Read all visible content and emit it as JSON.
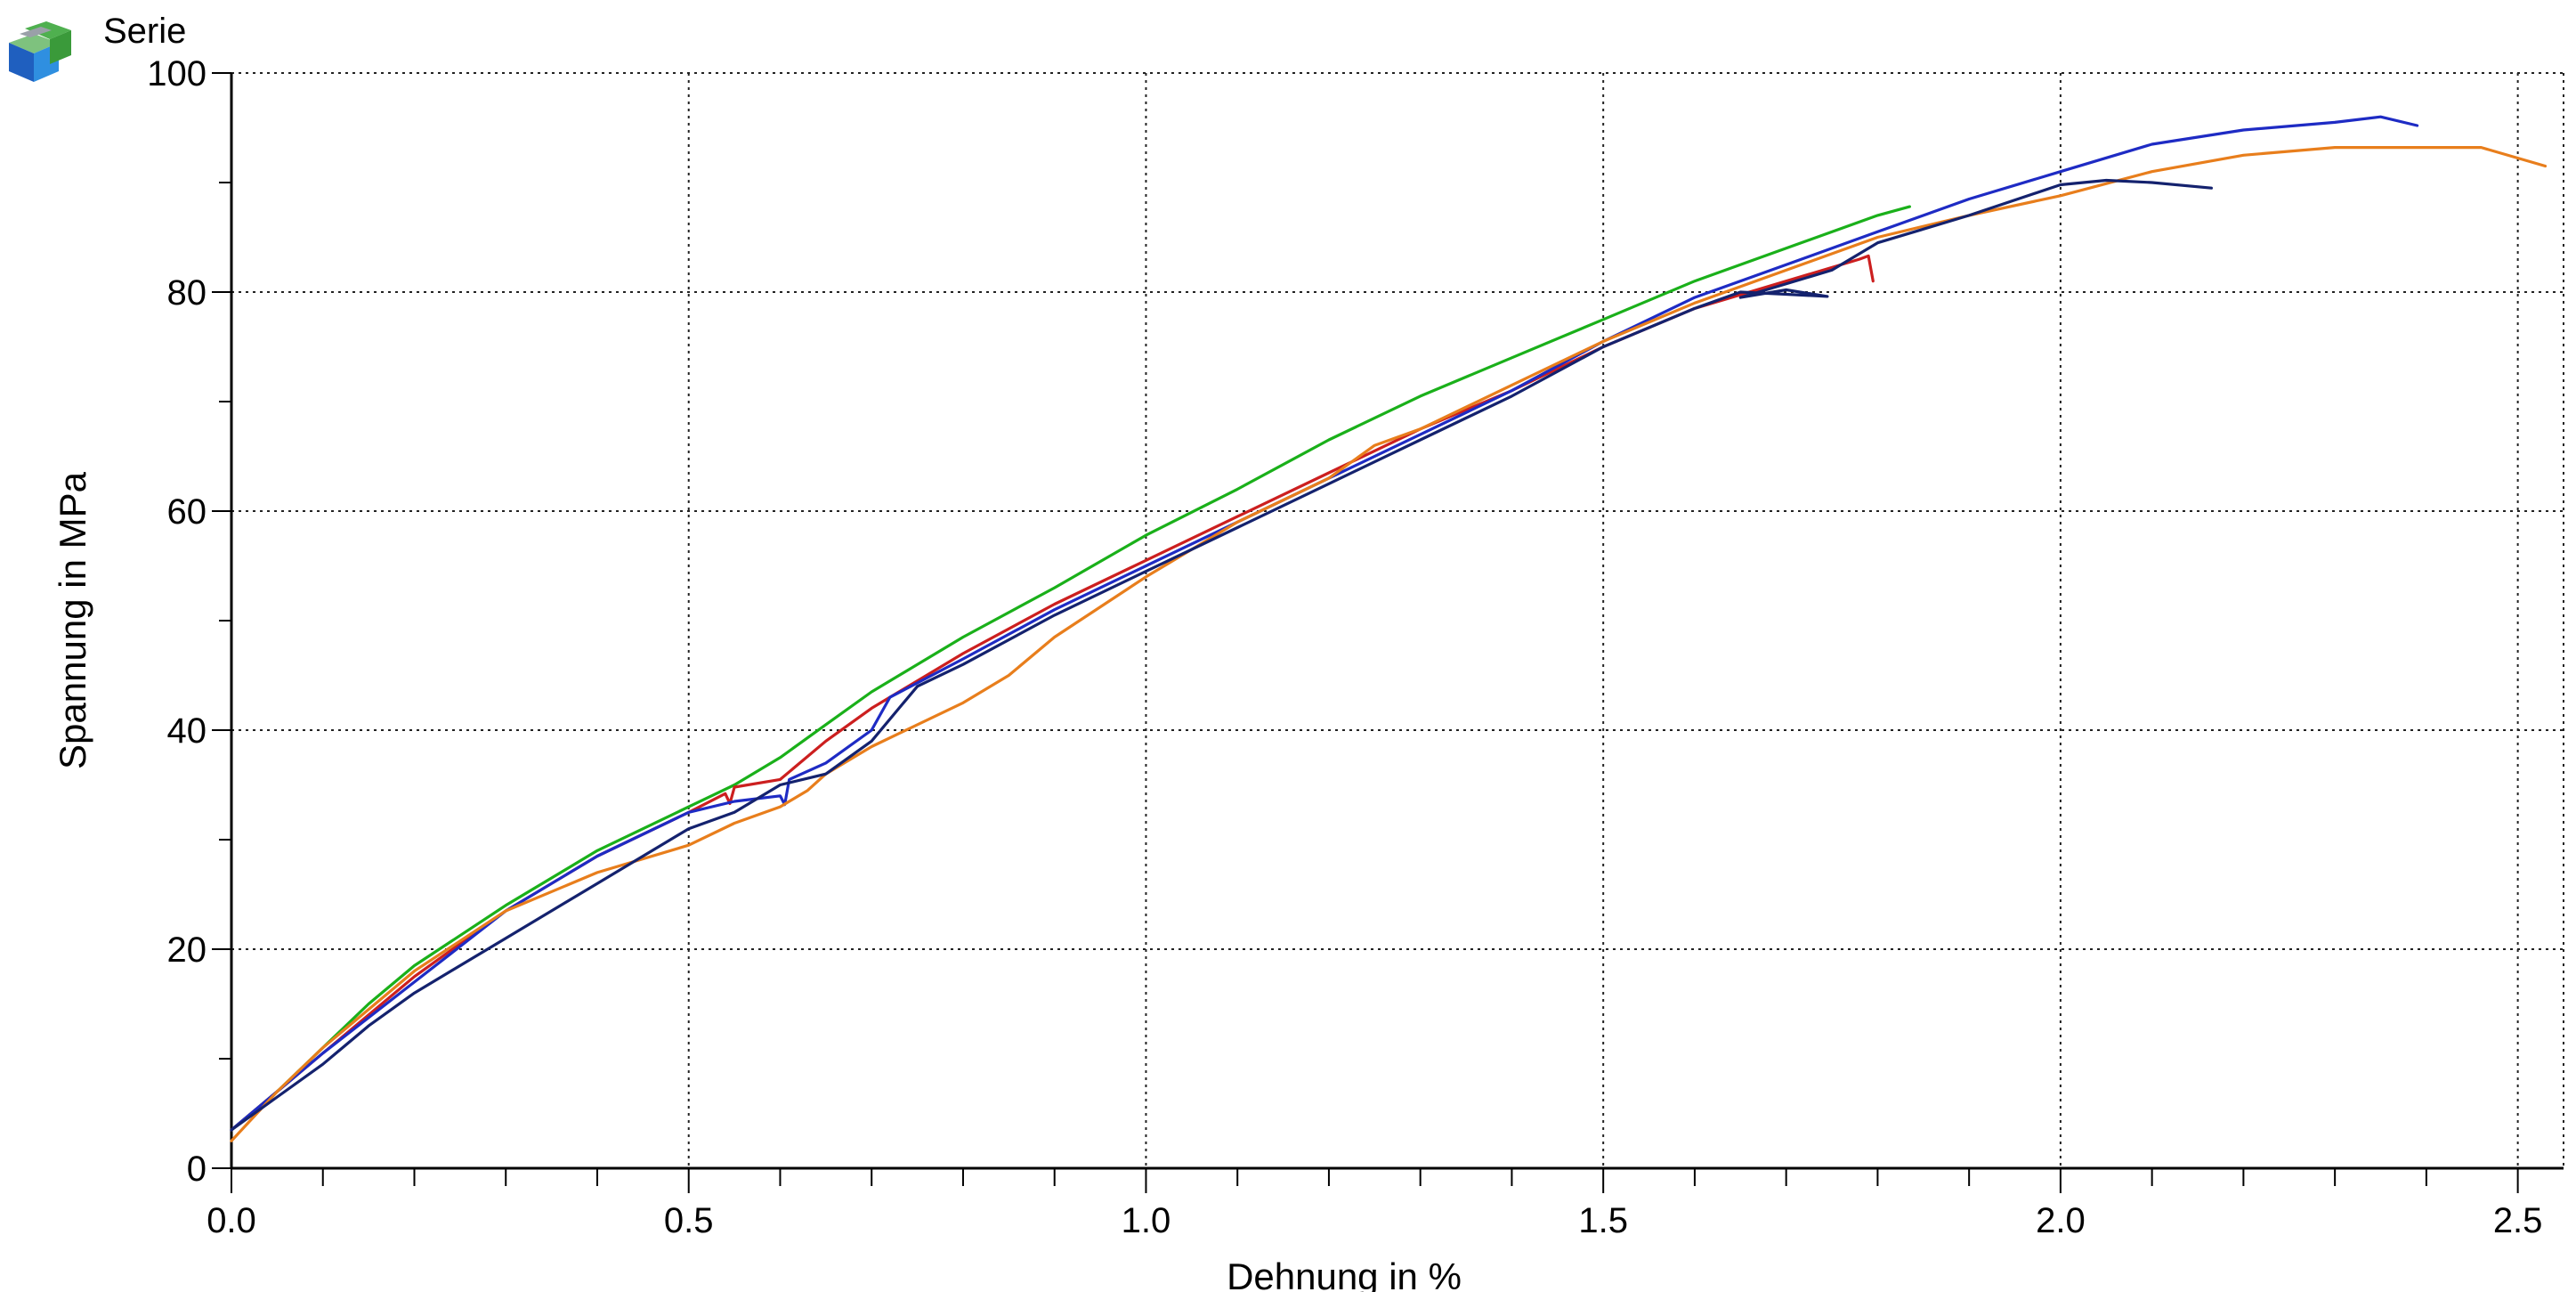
{
  "chart_data": {
    "type": "line",
    "title": "",
    "xlabel": "Dehnung in %",
    "ylabel": "Spannung in MPa",
    "xlim": [
      0,
      2.55
    ],
    "ylim": [
      0,
      100
    ],
    "x_ticks": [
      "0.0",
      "0.5",
      "1.0",
      "1.5",
      "2.0",
      "2.5"
    ],
    "x_tick_values": [
      0,
      0.5,
      1.0,
      1.5,
      2.0,
      2.5
    ],
    "y_ticks": [
      "0",
      "20",
      "40",
      "60",
      "80",
      "100"
    ],
    "y_tick_values": [
      0,
      20,
      40,
      60,
      80,
      100
    ],
    "grid": true,
    "grid_style": "dotted",
    "legend": {
      "label": "Serie",
      "position": "top-left"
    },
    "series": [
      {
        "color": "#1ab01a",
        "points": [
          [
            0,
            3.5
          ],
          [
            0.05,
            7
          ],
          [
            0.1,
            11
          ],
          [
            0.15,
            15
          ],
          [
            0.2,
            18.5
          ],
          [
            0.3,
            24
          ],
          [
            0.4,
            29
          ],
          [
            0.5,
            33
          ],
          [
            0.55,
            35
          ],
          [
            0.6,
            37.5
          ],
          [
            0.65,
            40.5
          ],
          [
            0.7,
            43.5
          ],
          [
            0.75,
            46
          ],
          [
            0.8,
            48.5
          ],
          [
            0.9,
            53
          ],
          [
            1.0,
            57.8
          ],
          [
            1.1,
            62
          ],
          [
            1.2,
            66.5
          ],
          [
            1.3,
            70.5
          ],
          [
            1.4,
            74
          ],
          [
            1.5,
            77.5
          ],
          [
            1.6,
            81
          ],
          [
            1.7,
            84
          ],
          [
            1.8,
            87
          ],
          [
            1.835,
            87.8
          ]
        ]
      },
      {
        "color": "#cc1f1f",
        "points": [
          [
            0,
            3.5
          ],
          [
            0.05,
            7
          ],
          [
            0.1,
            10.5
          ],
          [
            0.2,
            17.5
          ],
          [
            0.3,
            23.5
          ],
          [
            0.4,
            28.5
          ],
          [
            0.5,
            32.5
          ],
          [
            0.54,
            34.2
          ],
          [
            0.545,
            33.3
          ],
          [
            0.55,
            34.8
          ],
          [
            0.6,
            35.5
          ],
          [
            0.65,
            39
          ],
          [
            0.7,
            42
          ],
          [
            0.8,
            47
          ],
          [
            0.9,
            51.5
          ],
          [
            1.0,
            55.5
          ],
          [
            1.1,
            59.5
          ],
          [
            1.2,
            63.5
          ],
          [
            1.3,
            67.5
          ],
          [
            1.4,
            71
          ],
          [
            1.5,
            75
          ],
          [
            1.6,
            78.5
          ],
          [
            1.7,
            81
          ],
          [
            1.78,
            83
          ],
          [
            1.79,
            83.3
          ],
          [
            1.795,
            81
          ]
        ]
      },
      {
        "color": "#1e2bc4",
        "points": [
          [
            0,
            3.5
          ],
          [
            0.05,
            7
          ],
          [
            0.1,
            10.5
          ],
          [
            0.2,
            17
          ],
          [
            0.3,
            23.5
          ],
          [
            0.4,
            28.5
          ],
          [
            0.5,
            32.5
          ],
          [
            0.55,
            33.5
          ],
          [
            0.6,
            34
          ],
          [
            0.605,
            33.2
          ],
          [
            0.61,
            35.5
          ],
          [
            0.65,
            37
          ],
          [
            0.7,
            40
          ],
          [
            0.72,
            43
          ],
          [
            0.8,
            46.5
          ],
          [
            0.9,
            51
          ],
          [
            1.0,
            55
          ],
          [
            1.1,
            59
          ],
          [
            1.2,
            63
          ],
          [
            1.3,
            67
          ],
          [
            1.4,
            71
          ],
          [
            1.5,
            75.5
          ],
          [
            1.6,
            79.5
          ],
          [
            1.7,
            82.5
          ],
          [
            1.8,
            85.5
          ],
          [
            1.9,
            88.5
          ],
          [
            2.0,
            91
          ],
          [
            2.1,
            93.5
          ],
          [
            2.2,
            94.8
          ],
          [
            2.3,
            95.5
          ],
          [
            2.35,
            96
          ],
          [
            2.39,
            95.2
          ]
        ]
      },
      {
        "color": "#e87e1c",
        "points": [
          [
            0,
            2.5
          ],
          [
            0.05,
            7
          ],
          [
            0.1,
            11
          ],
          [
            0.2,
            18
          ],
          [
            0.3,
            23.5
          ],
          [
            0.4,
            27
          ],
          [
            0.5,
            29.5
          ],
          [
            0.55,
            31.5
          ],
          [
            0.6,
            33
          ],
          [
            0.63,
            34.5
          ],
          [
            0.65,
            36
          ],
          [
            0.7,
            38.5
          ],
          [
            0.8,
            42.5
          ],
          [
            0.85,
            45
          ],
          [
            0.9,
            48.5
          ],
          [
            1.0,
            54
          ],
          [
            1.1,
            59
          ],
          [
            1.2,
            63
          ],
          [
            1.25,
            66
          ],
          [
            1.3,
            67.5
          ],
          [
            1.4,
            71.5
          ],
          [
            1.5,
            75.5
          ],
          [
            1.6,
            79
          ],
          [
            1.7,
            82
          ],
          [
            1.8,
            85
          ],
          [
            1.9,
            87
          ],
          [
            2.0,
            88.8
          ],
          [
            2.1,
            91
          ],
          [
            2.2,
            92.5
          ],
          [
            2.3,
            93.2
          ],
          [
            2.46,
            93.2
          ],
          [
            2.53,
            91.5
          ]
        ]
      },
      {
        "color": "#14226e",
        "points": [
          [
            0,
            3.5
          ],
          [
            0.05,
            6.5
          ],
          [
            0.1,
            9.5
          ],
          [
            0.15,
            13
          ],
          [
            0.2,
            16
          ],
          [
            0.3,
            21
          ],
          [
            0.4,
            26
          ],
          [
            0.5,
            31
          ],
          [
            0.55,
            32.5
          ],
          [
            0.6,
            35
          ],
          [
            0.65,
            36
          ],
          [
            0.7,
            39
          ],
          [
            0.73,
            42
          ],
          [
            0.75,
            44
          ],
          [
            0.8,
            46
          ],
          [
            0.9,
            50.5
          ],
          [
            1.0,
            54.5
          ],
          [
            1.1,
            58.5
          ],
          [
            1.2,
            62.5
          ],
          [
            1.3,
            66.5
          ],
          [
            1.4,
            70.5
          ],
          [
            1.5,
            75
          ],
          [
            1.6,
            78.5
          ],
          [
            1.65,
            80
          ],
          [
            1.7,
            79.8
          ],
          [
            1.745,
            79.6
          ],
          [
            1.7,
            80.2
          ],
          [
            1.65,
            79.5
          ],
          [
            1.75,
            82
          ],
          [
            1.8,
            84.5
          ],
          [
            1.9,
            87
          ],
          [
            2.0,
            89.8
          ],
          [
            2.05,
            90.2
          ],
          [
            2.1,
            90
          ],
          [
            2.165,
            89.5
          ]
        ]
      }
    ]
  }
}
